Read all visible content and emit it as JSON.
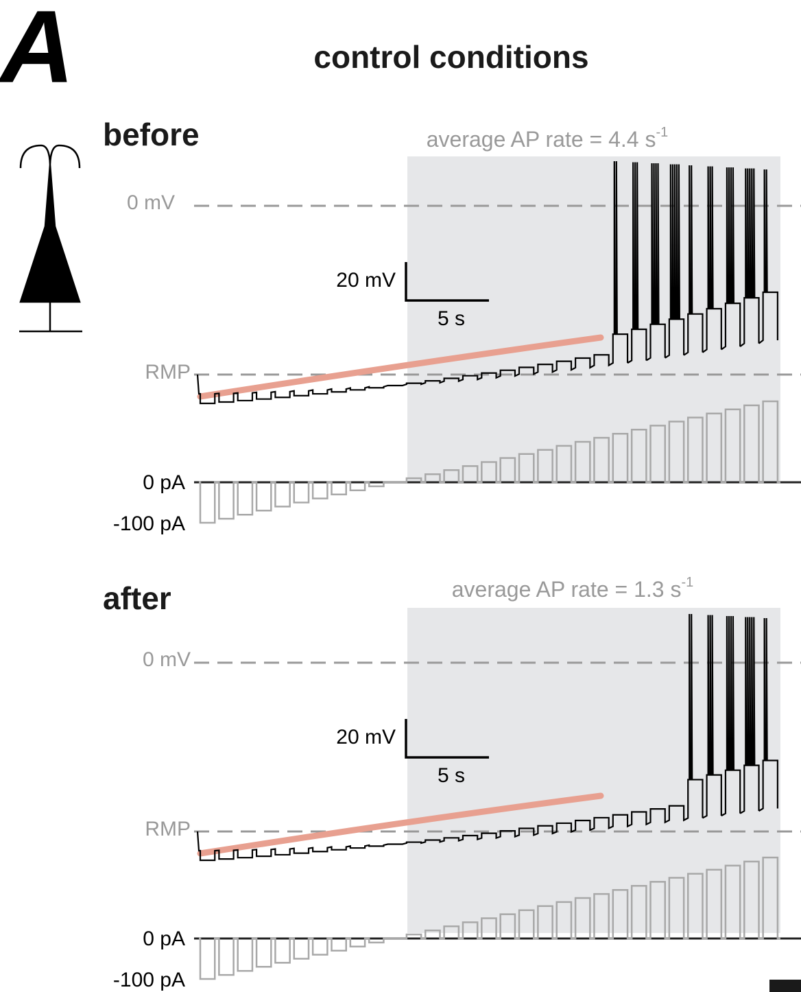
{
  "panel_label": "A",
  "title": "control conditions",
  "panels": [
    {
      "label": "before",
      "rate_text": "average AP rate = 4.4 s",
      "rate_superscript": "-1",
      "zero_mv": "0 mV",
      "rmp": "RMP",
      "scale_v": "20 mV",
      "scale_t": "5 s",
      "zero_pa": "0 pA",
      "neg_pa": "-100 pA"
    },
    {
      "label": "after",
      "rate_text": "average AP rate = 1.3 s",
      "rate_superscript": "-1",
      "zero_mv": "0 mV",
      "rmp": "RMP",
      "scale_v": "20 mV",
      "scale_t": "5 s",
      "zero_pa": "0 pA",
      "neg_pa": "-100 pA"
    }
  ]
}
